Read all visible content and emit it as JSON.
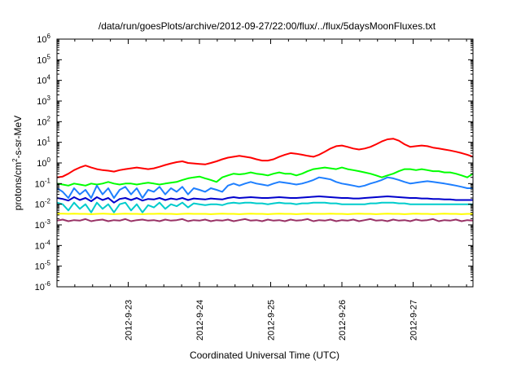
{
  "chart_data": {
    "type": "line",
    "title": "/data/run/goesPlots/archive/2012-09-27/22:00/flux/../flux/5daysMoonFluxes.txt",
    "xlabel": "Coordinated Universal Time (UTC)",
    "ylabel_prefix": "protons/cm",
    "ylabel_exp": "2",
    "ylabel_suffix": "-s-sr-MeV",
    "y_scale": "log",
    "ylim": [
      1e-06,
      1000000
    ],
    "xlim": [
      0,
      5.84
    ],
    "y_ticks": [
      {
        "exp": -6,
        "label_base": "10",
        "label_exp": "-6"
      },
      {
        "exp": -5,
        "label_base": "10",
        "label_exp": "-5"
      },
      {
        "exp": -4,
        "label_base": "10",
        "label_exp": "-4"
      },
      {
        "exp": -3,
        "label_base": "10",
        "label_exp": "-3"
      },
      {
        "exp": -2,
        "label_base": "10",
        "label_exp": "-2"
      },
      {
        "exp": -1,
        "label_base": "10",
        "label_exp": "-1"
      },
      {
        "exp": 0,
        "label_base": "10",
        "label_exp": "0"
      },
      {
        "exp": 1,
        "label_base": "10",
        "label_exp": "1"
      },
      {
        "exp": 2,
        "label_base": "10",
        "label_exp": "2"
      },
      {
        "exp": 3,
        "label_base": "10",
        "label_exp": "3"
      },
      {
        "exp": 4,
        "label_base": "10",
        "label_exp": "4"
      },
      {
        "exp": 5,
        "label_base": "10",
        "label_exp": "5"
      },
      {
        "exp": 6,
        "label_base": "10",
        "label_exp": "6"
      }
    ],
    "x_ticks": [
      {
        "x": 1,
        "label": "2012-9-23"
      },
      {
        "x": 2,
        "label": "2012-9-24"
      },
      {
        "x": 3,
        "label": "2012-9-25"
      },
      {
        "x": 4,
        "label": "2012-9-26"
      },
      {
        "x": 5,
        "label": "2012-9-27"
      }
    ],
    "grid": false,
    "legend": "none",
    "x_sample_step": 0.08,
    "series": [
      {
        "color": "#ff0000",
        "values": [
          0.2,
          0.22,
          0.3,
          0.45,
          0.6,
          0.75,
          0.6,
          0.5,
          0.45,
          0.42,
          0.38,
          0.45,
          0.5,
          0.55,
          0.6,
          0.55,
          0.5,
          0.55,
          0.65,
          0.8,
          0.95,
          1.1,
          1.2,
          1.0,
          0.95,
          0.9,
          0.85,
          1.0,
          1.2,
          1.5,
          1.8,
          2.0,
          2.2,
          2.0,
          1.8,
          1.5,
          1.3,
          1.3,
          1.5,
          2.0,
          2.5,
          3.0,
          2.8,
          2.5,
          2.2,
          2.0,
          2.5,
          3.5,
          5.0,
          6.5,
          7.0,
          6.0,
          5.0,
          4.5,
          5.0,
          6.0,
          8.0,
          11.0,
          14.0,
          15.0,
          12.0,
          8.0,
          6.0,
          6.5,
          7.0,
          6.5,
          5.5,
          5.0,
          4.5,
          4.0,
          3.5,
          3.0,
          2.5,
          2.0
        ]
      },
      {
        "color": "#00ff00",
        "values": [
          0.1,
          0.09,
          0.08,
          0.1,
          0.09,
          0.08,
          0.1,
          0.09,
          0.1,
          0.12,
          0.1,
          0.09,
          0.1,
          0.1,
          0.09,
          0.1,
          0.11,
          0.1,
          0.09,
          0.1,
          0.11,
          0.12,
          0.15,
          0.18,
          0.2,
          0.22,
          0.18,
          0.15,
          0.12,
          0.2,
          0.25,
          0.3,
          0.28,
          0.3,
          0.35,
          0.3,
          0.28,
          0.25,
          0.3,
          0.35,
          0.3,
          0.3,
          0.25,
          0.3,
          0.4,
          0.5,
          0.55,
          0.6,
          0.55,
          0.5,
          0.6,
          0.5,
          0.45,
          0.4,
          0.35,
          0.3,
          0.25,
          0.2,
          0.25,
          0.3,
          0.4,
          0.5,
          0.5,
          0.45,
          0.5,
          0.45,
          0.4,
          0.4,
          0.35,
          0.35,
          0.3,
          0.25,
          0.2,
          0.3
        ]
      },
      {
        "color": "#1e7fff",
        "values": [
          0.06,
          0.04,
          0.02,
          0.06,
          0.03,
          0.05,
          0.02,
          0.08,
          0.03,
          0.06,
          0.02,
          0.05,
          0.07,
          0.03,
          0.06,
          0.02,
          0.05,
          0.04,
          0.07,
          0.03,
          0.06,
          0.04,
          0.07,
          0.03,
          0.06,
          0.05,
          0.04,
          0.06,
          0.05,
          0.04,
          0.08,
          0.1,
          0.08,
          0.1,
          0.12,
          0.1,
          0.09,
          0.08,
          0.1,
          0.12,
          0.11,
          0.1,
          0.09,
          0.1,
          0.12,
          0.15,
          0.2,
          0.18,
          0.16,
          0.12,
          0.1,
          0.09,
          0.08,
          0.07,
          0.08,
          0.1,
          0.12,
          0.15,
          0.2,
          0.18,
          0.15,
          0.12,
          0.1,
          0.11,
          0.12,
          0.13,
          0.12,
          0.11,
          0.1,
          0.09,
          0.08,
          0.07,
          0.06,
          0.06
        ]
      },
      {
        "color": "#0000cc",
        "values": [
          0.02,
          0.018,
          0.015,
          0.022,
          0.016,
          0.02,
          0.014,
          0.022,
          0.016,
          0.02,
          0.012,
          0.018,
          0.02,
          0.016,
          0.02,
          0.015,
          0.018,
          0.017,
          0.02,
          0.016,
          0.019,
          0.017,
          0.02,
          0.016,
          0.019,
          0.018,
          0.017,
          0.019,
          0.018,
          0.017,
          0.02,
          0.022,
          0.02,
          0.021,
          0.022,
          0.021,
          0.02,
          0.02,
          0.021,
          0.022,
          0.021,
          0.02,
          0.02,
          0.021,
          0.022,
          0.023,
          0.024,
          0.023,
          0.022,
          0.021,
          0.02,
          0.02,
          0.019,
          0.019,
          0.02,
          0.021,
          0.022,
          0.023,
          0.024,
          0.023,
          0.022,
          0.021,
          0.02,
          0.02,
          0.019,
          0.019,
          0.018,
          0.018,
          0.017,
          0.017,
          0.016,
          0.016,
          0.016,
          0.016
        ]
      },
      {
        "color": "#00cccc",
        "values": [
          0.012,
          0.01,
          0.005,
          0.012,
          0.006,
          0.01,
          0.004,
          0.012,
          0.006,
          0.01,
          0.004,
          0.01,
          0.012,
          0.005,
          0.01,
          0.004,
          0.009,
          0.007,
          0.012,
          0.006,
          0.01,
          0.008,
          0.012,
          0.007,
          0.011,
          0.01,
          0.009,
          0.01,
          0.01,
          0.009,
          0.011,
          0.012,
          0.011,
          0.012,
          0.012,
          0.011,
          0.011,
          0.01,
          0.011,
          0.012,
          0.011,
          0.011,
          0.01,
          0.011,
          0.011,
          0.012,
          0.012,
          0.012,
          0.011,
          0.011,
          0.01,
          0.01,
          0.01,
          0.01,
          0.01,
          0.011,
          0.011,
          0.012,
          0.012,
          0.012,
          0.011,
          0.011,
          0.01,
          0.01,
          0.01,
          0.01,
          0.01,
          0.01,
          0.01,
          0.01,
          0.01,
          0.01,
          0.01,
          0.01
        ]
      },
      {
        "color": "#ffff00",
        "values": [
          0.0035,
          0.0035,
          0.0034,
          0.0035,
          0.0034,
          0.0034,
          0.0033,
          0.0034,
          0.0035,
          0.0034,
          0.0033,
          0.0034,
          0.0035,
          0.0034,
          0.0034,
          0.0033,
          0.0034,
          0.0034,
          0.0035,
          0.0034,
          0.0034,
          0.0033,
          0.0034,
          0.0035,
          0.0034,
          0.0034,
          0.0034,
          0.0033,
          0.0034,
          0.0035,
          0.0034,
          0.0034,
          0.0033,
          0.0034,
          0.0035,
          0.0034,
          0.0034,
          0.0033,
          0.0034,
          0.0035,
          0.0034,
          0.0034,
          0.0033,
          0.0034,
          0.0035,
          0.0034,
          0.0034,
          0.0034,
          0.0035,
          0.0034,
          0.0034,
          0.0033,
          0.0034,
          0.0035,
          0.0034,
          0.0034,
          0.0033,
          0.0034,
          0.0035,
          0.0034,
          0.0034,
          0.0033,
          0.0034,
          0.0035,
          0.0034,
          0.0034,
          0.0033,
          0.0034,
          0.0035,
          0.0034,
          0.0034,
          0.0033,
          0.0034,
          0.0034
        ]
      },
      {
        "color": "#993366",
        "values": [
          0.0016,
          0.0018,
          0.0015,
          0.0017,
          0.0016,
          0.0019,
          0.0015,
          0.0017,
          0.0018,
          0.0015,
          0.0017,
          0.0016,
          0.0019,
          0.0015,
          0.0017,
          0.0018,
          0.0016,
          0.0017,
          0.0015,
          0.0018,
          0.0016,
          0.0017,
          0.0019,
          0.0015,
          0.0017,
          0.0016,
          0.0018,
          0.0015,
          0.0017,
          0.0016,
          0.0018,
          0.0015,
          0.0017,
          0.0019,
          0.0016,
          0.0017,
          0.0015,
          0.0018,
          0.0016,
          0.0017,
          0.0015,
          0.0018,
          0.0016,
          0.0017,
          0.0019,
          0.0015,
          0.0017,
          0.0016,
          0.0018,
          0.0015,
          0.0017,
          0.0016,
          0.0018,
          0.0015,
          0.0017,
          0.0019,
          0.0016,
          0.0017,
          0.0015,
          0.0018,
          0.0016,
          0.0017,
          0.0015,
          0.0018,
          0.0016,
          0.0017,
          0.0019,
          0.0015,
          0.0017,
          0.0016,
          0.0018,
          0.0015,
          0.0017,
          0.0016
        ]
      }
    ]
  }
}
